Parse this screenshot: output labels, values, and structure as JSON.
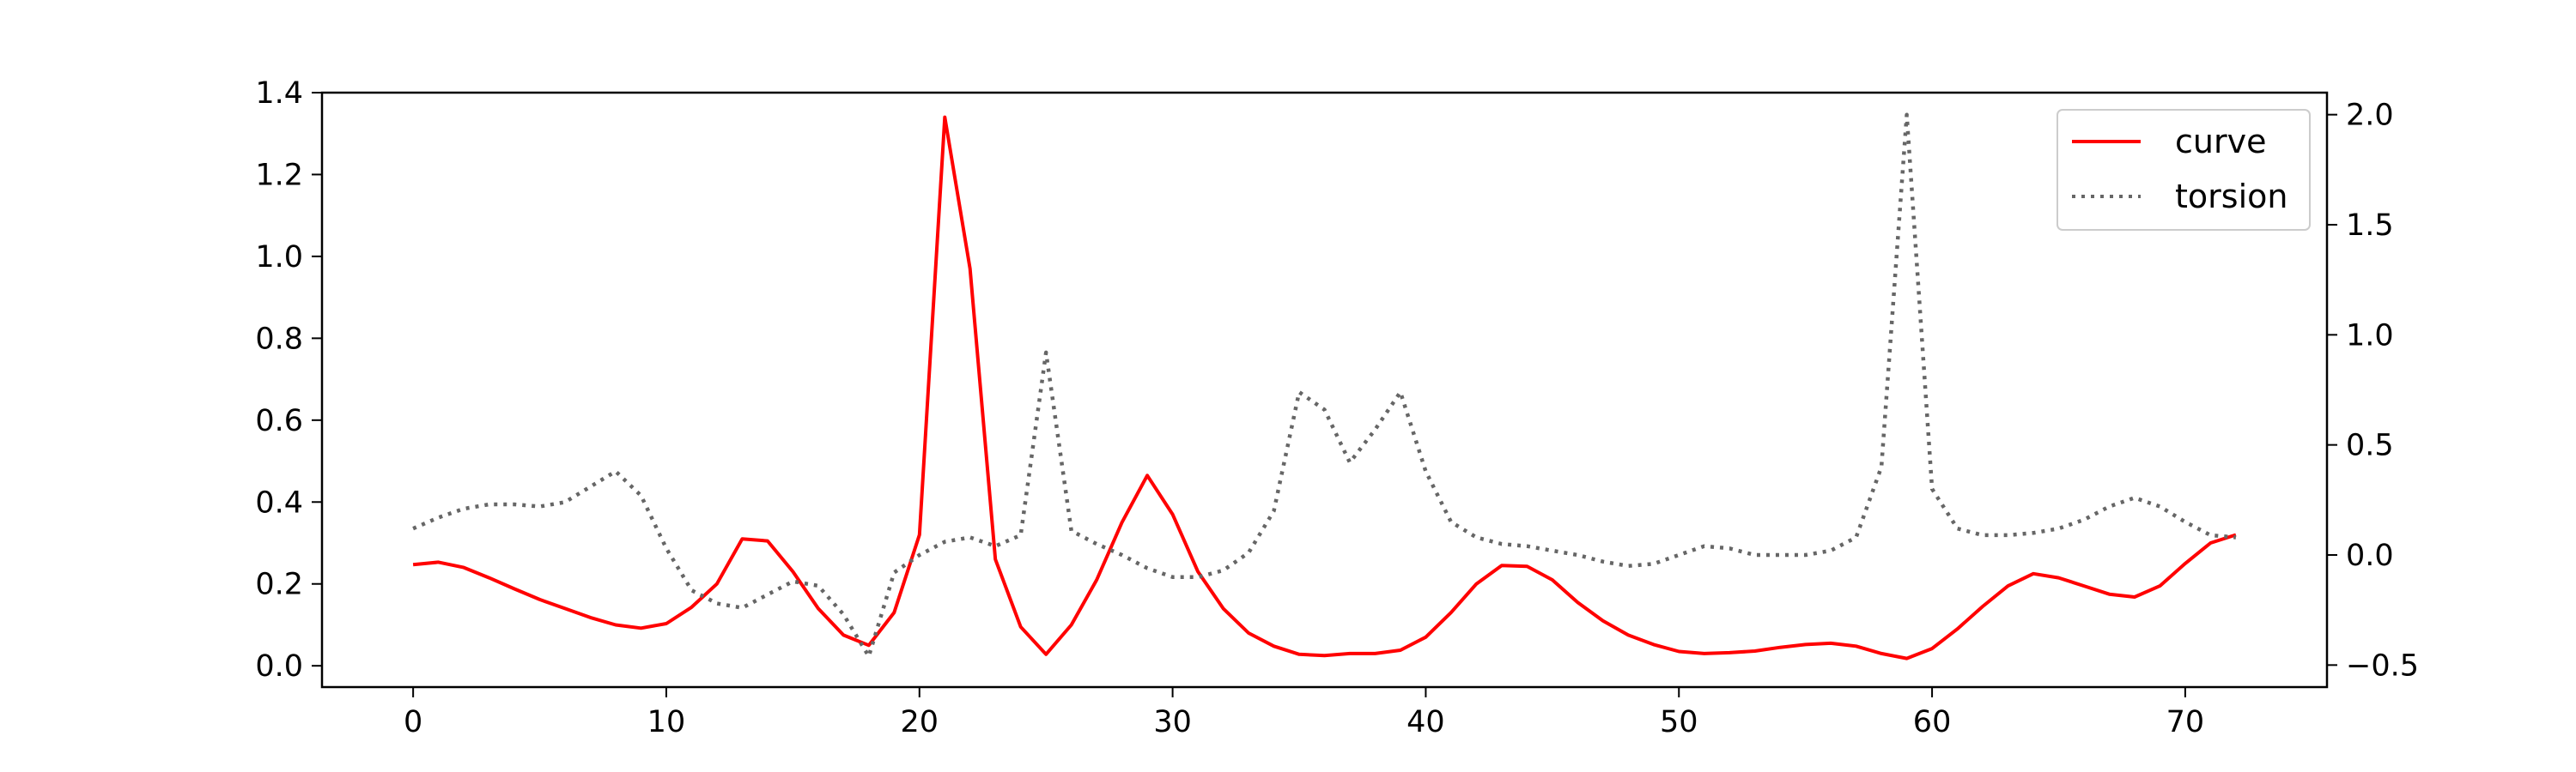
{
  "chart_data": {
    "type": "line",
    "title": "",
    "xlabel": "",
    "ylabel_left": "",
    "ylabel_right": "",
    "xlim": [
      -3.6,
      75.6
    ],
    "ylim_left": [
      -0.052,
      1.4
    ],
    "ylim_right": [
      -0.6,
      2.1
    ],
    "xticks": [
      0,
      10,
      20,
      30,
      40,
      50,
      60,
      70
    ],
    "yticks_left": [
      0.0,
      0.2,
      0.4,
      0.6,
      0.8,
      1.0,
      1.2,
      1.4
    ],
    "yticks_right": [
      -0.5,
      0.0,
      0.5,
      1.0,
      1.5,
      2.0
    ],
    "grid": false,
    "legend_position": "upper right",
    "series": [
      {
        "name": "curve",
        "axis": "left",
        "color": "#ff0000",
        "style": "solid",
        "x": [
          0,
          1,
          2,
          3,
          4,
          5,
          6,
          7,
          8,
          9,
          10,
          11,
          12,
          13,
          14,
          15,
          16,
          17,
          18,
          19,
          20,
          21,
          22,
          23,
          24,
          25,
          26,
          27,
          28,
          29,
          30,
          31,
          32,
          33,
          34,
          35,
          36,
          37,
          38,
          39,
          40,
          41,
          42,
          43,
          44,
          45,
          46,
          47,
          48,
          49,
          50,
          51,
          52,
          53,
          54,
          55,
          56,
          57,
          58,
          59,
          60,
          61,
          62,
          63,
          64,
          65,
          66,
          67,
          68,
          69,
          70,
          71,
          72
        ],
        "values": [
          0.247,
          0.253,
          0.24,
          0.215,
          0.188,
          0.162,
          0.14,
          0.118,
          0.1,
          0.092,
          0.103,
          0.143,
          0.2,
          0.31,
          0.305,
          0.23,
          0.14,
          0.075,
          0.05,
          0.13,
          0.32,
          1.34,
          0.97,
          0.26,
          0.095,
          0.028,
          0.1,
          0.21,
          0.35,
          0.465,
          0.37,
          0.23,
          0.14,
          0.08,
          0.048,
          0.028,
          0.025,
          0.03,
          0.03,
          0.038,
          0.07,
          0.13,
          0.2,
          0.245,
          0.243,
          0.21,
          0.155,
          0.11,
          0.075,
          0.052,
          0.035,
          0.03,
          0.032,
          0.036,
          0.045,
          0.052,
          0.055,
          0.048,
          0.03,
          0.018,
          0.042,
          0.09,
          0.145,
          0.195,
          0.225,
          0.215,
          0.195,
          0.175,
          0.168,
          0.195,
          0.25,
          0.3,
          0.32
        ]
      },
      {
        "name": "torsion",
        "axis": "right",
        "color": "#666666",
        "style": "dotted",
        "x": [
          0,
          1,
          2,
          3,
          4,
          5,
          6,
          7,
          8,
          9,
          10,
          11,
          12,
          13,
          14,
          15,
          16,
          17,
          18,
          19,
          20,
          21,
          22,
          23,
          24,
          25,
          26,
          27,
          28,
          29,
          30,
          31,
          32,
          33,
          34,
          35,
          36,
          37,
          38,
          39,
          40,
          41,
          42,
          43,
          44,
          45,
          46,
          47,
          48,
          49,
          50,
          51,
          52,
          53,
          54,
          55,
          56,
          57,
          58,
          59,
          60,
          61,
          62,
          63,
          64,
          65,
          66,
          67,
          68,
          69,
          70,
          71,
          72
        ],
        "values": [
          0.12,
          0.17,
          0.21,
          0.23,
          0.23,
          0.22,
          0.24,
          0.31,
          0.38,
          0.27,
          0.03,
          -0.16,
          -0.22,
          -0.24,
          -0.18,
          -0.12,
          -0.14,
          -0.27,
          -0.46,
          -0.08,
          0.0,
          0.06,
          0.08,
          0.04,
          0.09,
          0.92,
          0.11,
          0.05,
          0.0,
          -0.06,
          -0.1,
          -0.1,
          -0.07,
          0.01,
          0.2,
          0.74,
          0.66,
          0.42,
          0.57,
          0.74,
          0.38,
          0.15,
          0.08,
          0.05,
          0.04,
          0.02,
          0.0,
          -0.03,
          -0.05,
          -0.04,
          0.0,
          0.04,
          0.03,
          0.0,
          0.0,
          0.0,
          0.02,
          0.08,
          0.4,
          2.0,
          0.3,
          0.12,
          0.09,
          0.09,
          0.1,
          0.12,
          0.16,
          0.22,
          0.26,
          0.22,
          0.15,
          0.09,
          0.08
        ]
      }
    ]
  }
}
